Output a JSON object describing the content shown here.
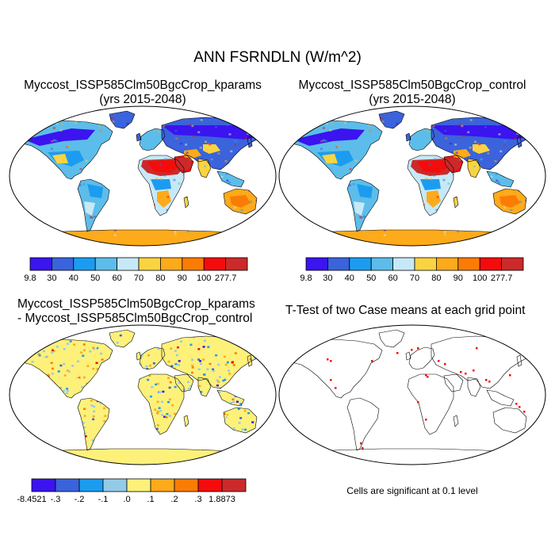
{
  "title": "ANN FSRNDLN (W/m^2)",
  "panels": {
    "top_left": {
      "title_line1": "Myccost_ISSP585Clm50BgcCrop_kparams",
      "title_line2": "(yrs 2015-2048)"
    },
    "top_right": {
      "title_line1": "Myccost_ISSP585Clm50BgcCrop_control",
      "title_line2": "(yrs 2015-2048)"
    },
    "bottom_left": {
      "title_line1": "Myccost_ISSP585Clm50BgcCrop_kparams",
      "title_line2": "- Myccost_ISSP585Clm50BgcCrop_control"
    },
    "bottom_right": {
      "title": "T-Test of two Case means at each grid point",
      "note": "Cells are significant at 0.1 level"
    }
  },
  "colorbars": {
    "abs": {
      "labels": [
        "9.8",
        "30",
        "40",
        "50",
        "60",
        "70",
        "80",
        "90",
        "100",
        "277.7"
      ],
      "colors": [
        "#3b14ef",
        "#3a63dc",
        "#1c9cf0",
        "#5cbdea",
        "#c7e9f7",
        "#fad440",
        "#fdaa1b",
        "#fb7c04",
        "#f40c0c",
        "#cc2a2a"
      ]
    },
    "diff": {
      "labels": [
        "-8.4521",
        "-.3",
        "-.2",
        "-.1",
        ".0",
        ".1",
        ".2",
        ".3",
        "1.8873"
      ],
      "colors": [
        "#3b14ef",
        "#3a63dc",
        "#1c9cf0",
        "#93cbe7",
        "#fdf17a",
        "#fdaa1b",
        "#fb7c04",
        "#f40c0c",
        "#cc2a2a"
      ]
    }
  },
  "colors": {
    "ocean": "#ffffff",
    "coast": "#000000",
    "significant": "#ff0000"
  }
}
